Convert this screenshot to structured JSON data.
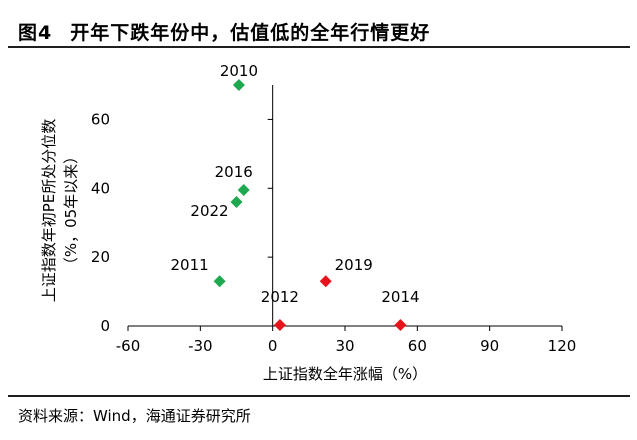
{
  "title": {
    "label": "图4",
    "text": "开年下跌年份中，估值低的全年行情更好"
  },
  "source": "资料来源：Wind，海通证券研究所",
  "colors": {
    "positive_return": "#1fa84f",
    "negative_return": "#e8141b",
    "axis": "#000000"
  },
  "chart_data": {
    "type": "scatter",
    "title": "",
    "xlabel": "上证指数全年涨幅（%）",
    "ylabel": "上证指数年初PE所处分位数",
    "ylabel_sub": "（%，05年以来）",
    "xlim": [
      -60,
      120
    ],
    "ylim": [
      0,
      70
    ],
    "x_ticks": [
      "-60",
      "-30",
      "0",
      "30",
      "60",
      "90",
      "120"
    ],
    "y_ticks": [
      "0",
      "20",
      "40",
      "60"
    ],
    "grid": false,
    "legend": "none",
    "points": [
      {
        "label": "2010",
        "x": -14,
        "y": 70,
        "color": "#1fa84f"
      },
      {
        "label": "2016",
        "x": -12,
        "y": 39.5,
        "color": "#1fa84f"
      },
      {
        "label": "2022",
        "x": -15,
        "y": 36,
        "color": "#1fa84f"
      },
      {
        "label": "2011",
        "x": -22,
        "y": 13,
        "color": "#1fa84f"
      },
      {
        "label": "2019",
        "x": 22,
        "y": 13,
        "color": "#e8141b"
      },
      {
        "label": "2012",
        "x": 3,
        "y": 0.3,
        "color": "#e8141b"
      },
      {
        "label": "2014",
        "x": 53,
        "y": 0.3,
        "color": "#e8141b"
      }
    ]
  }
}
